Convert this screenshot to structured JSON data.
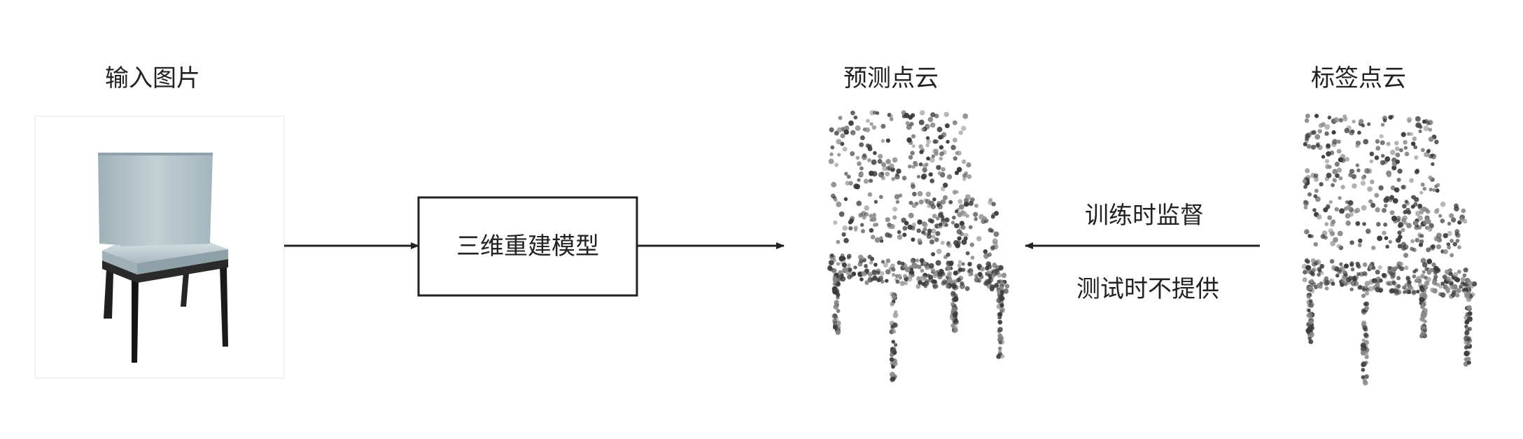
{
  "labels": {
    "input_image": "输入图片",
    "predicted_cloud": "预测点云",
    "label_cloud": "标签点云"
  },
  "model_box": {
    "text": "三维重建模型"
  },
  "supervision": {
    "line1": "训练时监督",
    "line2": "测试时不提供"
  },
  "colors": {
    "line": "#222222",
    "chair_seat": "#b9c7cc",
    "chair_back": "#aebfc6",
    "chair_legs": "#1a1a1a",
    "point_dark": "#3c3c3c",
    "point_light": "#8a8a8a"
  }
}
